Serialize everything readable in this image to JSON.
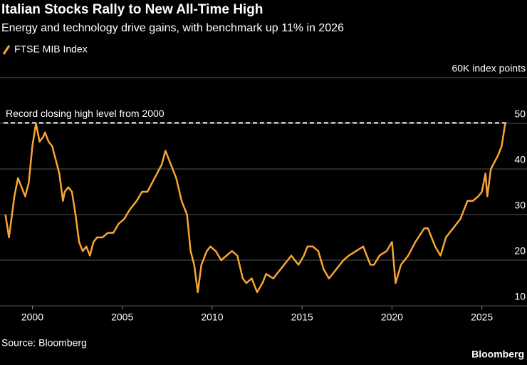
{
  "chart_data": {
    "type": "line",
    "title": "Italian Stocks Rally to New All-Time High",
    "subtitle": "Energy and technology drive gains, with benchmark up 11% in 2026",
    "source": "Source: Bloomberg",
    "branding": "Bloomberg",
    "annotation": {
      "text": "Record closing high level from 2000",
      "value": 50.1
    },
    "xlim": [
      1998.2,
      2026.4
    ],
    "xticks": [
      2000,
      2005,
      2010,
      2015,
      2020,
      2025
    ],
    "ylim": [
      10,
      60
    ],
    "yticks": [
      10,
      20,
      30,
      40,
      50,
      {
        "value": 60,
        "label": "60K index points"
      }
    ],
    "grid": true,
    "x": [
      1998.5,
      1998.7,
      1998.9,
      1999.0,
      1999.2,
      1999.4,
      1999.6,
      1999.8,
      2000.0,
      2000.2,
      2000.4,
      2000.6,
      2000.7,
      2000.9,
      2001.1,
      2001.3,
      2001.5,
      2001.7,
      2001.8,
      2002.0,
      2002.2,
      2002.4,
      2002.6,
      2002.8,
      2003.0,
      2003.2,
      2003.4,
      2003.6,
      2003.9,
      2004.2,
      2004.5,
      2004.8,
      2005.1,
      2005.4,
      2005.8,
      2006.1,
      2006.4,
      2006.8,
      2007.2,
      2007.4,
      2007.7,
      2008.0,
      2008.3,
      2008.6,
      2008.8,
      2009.0,
      2009.2,
      2009.4,
      2009.7,
      2009.9,
      2010.2,
      2010.5,
      2010.8,
      2011.1,
      2011.4,
      2011.7,
      2011.9,
      2012.2,
      2012.5,
      2012.8,
      2013.0,
      2013.4,
      2013.8,
      2014.2,
      2014.4,
      2014.8,
      2015.1,
      2015.3,
      2015.6,
      2015.9,
      2016.2,
      2016.5,
      2016.9,
      2017.3,
      2017.6,
      2018.0,
      2018.4,
      2018.8,
      2019.0,
      2019.3,
      2019.7,
      2020.0,
      2020.2,
      2020.5,
      2020.9,
      2021.3,
      2021.8,
      2022.0,
      2022.4,
      2022.7,
      2023.0,
      2023.4,
      2023.8,
      2024.2,
      2024.5,
      2024.8,
      2025.0,
      2025.2,
      2025.3,
      2025.5,
      2025.9,
      2026.1,
      2026.3
    ],
    "series": [
      {
        "name": "FTSE MIB Index",
        "color": "#f7a535",
        "values": [
          30,
          25,
          31,
          34,
          38,
          36,
          34,
          37,
          45,
          50,
          46,
          47,
          48,
          46,
          45,
          42,
          39,
          33,
          35,
          36,
          35,
          30,
          24,
          22,
          23,
          21,
          24,
          25,
          25,
          26,
          26,
          28,
          29,
          31,
          33,
          35,
          35,
          38,
          41,
          44,
          41,
          38,
          33,
          30,
          22,
          19,
          13,
          19,
          22,
          23,
          22,
          20,
          21,
          22,
          21,
          16,
          15,
          16,
          13,
          15,
          17,
          16,
          18,
          20,
          21,
          19,
          21,
          23,
          23,
          22,
          18,
          16,
          18,
          20,
          21,
          22,
          23,
          19,
          19,
          21,
          22,
          24,
          15,
          19,
          21,
          24,
          27,
          27,
          23,
          21,
          25,
          27,
          29,
          33,
          33,
          34,
          35,
          39,
          34,
          40,
          43,
          45,
          50.1
        ]
      }
    ]
  }
}
